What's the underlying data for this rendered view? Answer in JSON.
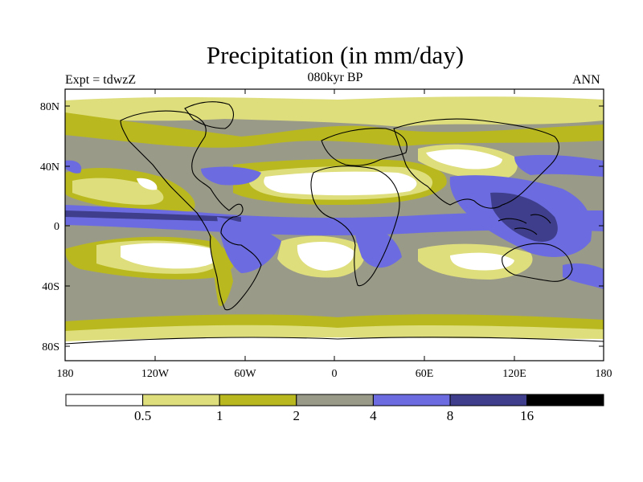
{
  "title": "Precipitation (in mm/day)",
  "subtitle_left": "Expt = tdwzZ",
  "subtitle_center": "080kyr BP",
  "subtitle_right": "ANN",
  "lat_ticks": [
    "80N",
    "40N",
    "0",
    "40S",
    "80S"
  ],
  "lon_ticks": [
    "180",
    "120W",
    "60W",
    "0",
    "60E",
    "120E",
    "180"
  ],
  "colorbar": {
    "colors": [
      "#ffffff",
      "#dede7c",
      "#b9b91f",
      "#9a9a88",
      "#6c6ce0",
      "#3e3e8c",
      "#000000"
    ],
    "labels": [
      "0.5",
      "1",
      "2",
      "4",
      "8",
      "16"
    ]
  },
  "palette": {
    "white": "#ffffff",
    "lightyellow": "#dede7c",
    "olive": "#b9b91f",
    "gray": "#9a9a88",
    "blue": "#6c6ce0",
    "navy": "#3e3e8c",
    "black": "#000000"
  }
}
